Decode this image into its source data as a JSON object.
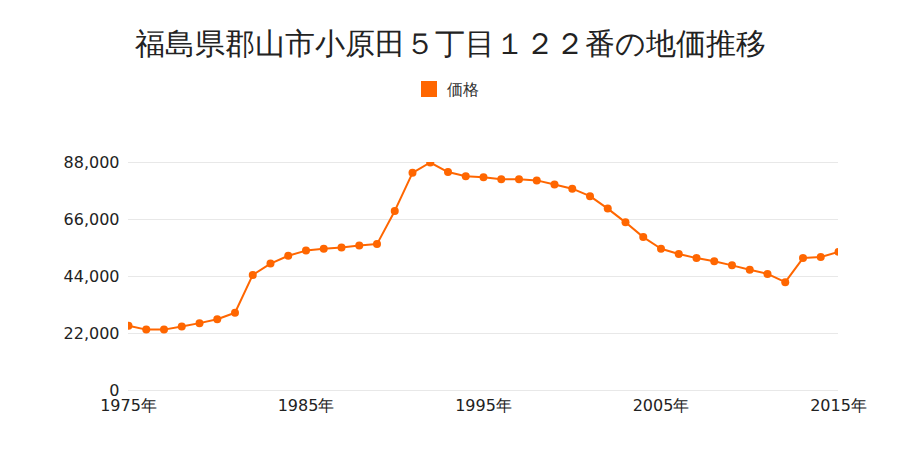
{
  "chart_data": {
    "type": "line",
    "title": "福島県郡山市小原田５丁目１２２番の地価推移",
    "x": [
      1975,
      1976,
      1977,
      1978,
      1979,
      1980,
      1981,
      1982,
      1983,
      1984,
      1985,
      1986,
      1987,
      1988,
      1989,
      1990,
      1991,
      1992,
      1993,
      1994,
      1995,
      1996,
      1997,
      1998,
      1999,
      2000,
      2001,
      2002,
      2003,
      2004,
      2005,
      2006,
      2007,
      2008,
      2009,
      2010,
      2011,
      2012,
      2013,
      2014,
      2015
    ],
    "series": [
      {
        "name": "価格",
        "color": "#ff6600",
        "marker": "circle",
        "values": [
          25000,
          23500,
          23500,
          24700,
          26000,
          27500,
          30000,
          44600,
          49000,
          52000,
          54000,
          54700,
          55200,
          56000,
          56500,
          69300,
          84000,
          88000,
          84300,
          82700,
          82300,
          81500,
          81500,
          81100,
          79500,
          77900,
          75000,
          70200,
          64900,
          59200,
          54700,
          52700,
          51100,
          49900,
          48300,
          46600,
          45000,
          41800,
          51100,
          51500,
          53500
        ]
      }
    ],
    "xlim": [
      1975,
      2015
    ],
    "xticks": [
      {
        "value": 1975,
        "label": "1975年"
      },
      {
        "value": 1985,
        "label": "1985年"
      },
      {
        "value": 1995,
        "label": "1995年"
      },
      {
        "value": 2005,
        "label": "2005年"
      },
      {
        "value": 2015,
        "label": "2015年"
      }
    ],
    "ylim": [
      0,
      88000
    ],
    "yticks": [
      0,
      {
        "value": 22000,
        "label": "22,000"
      },
      {
        "value": 44000,
        "label": "44,000"
      },
      {
        "value": 66000,
        "label": "66,000"
      },
      {
        "value": 88000,
        "label": "88,000"
      }
    ],
    "grid": true,
    "legend": "top"
  }
}
